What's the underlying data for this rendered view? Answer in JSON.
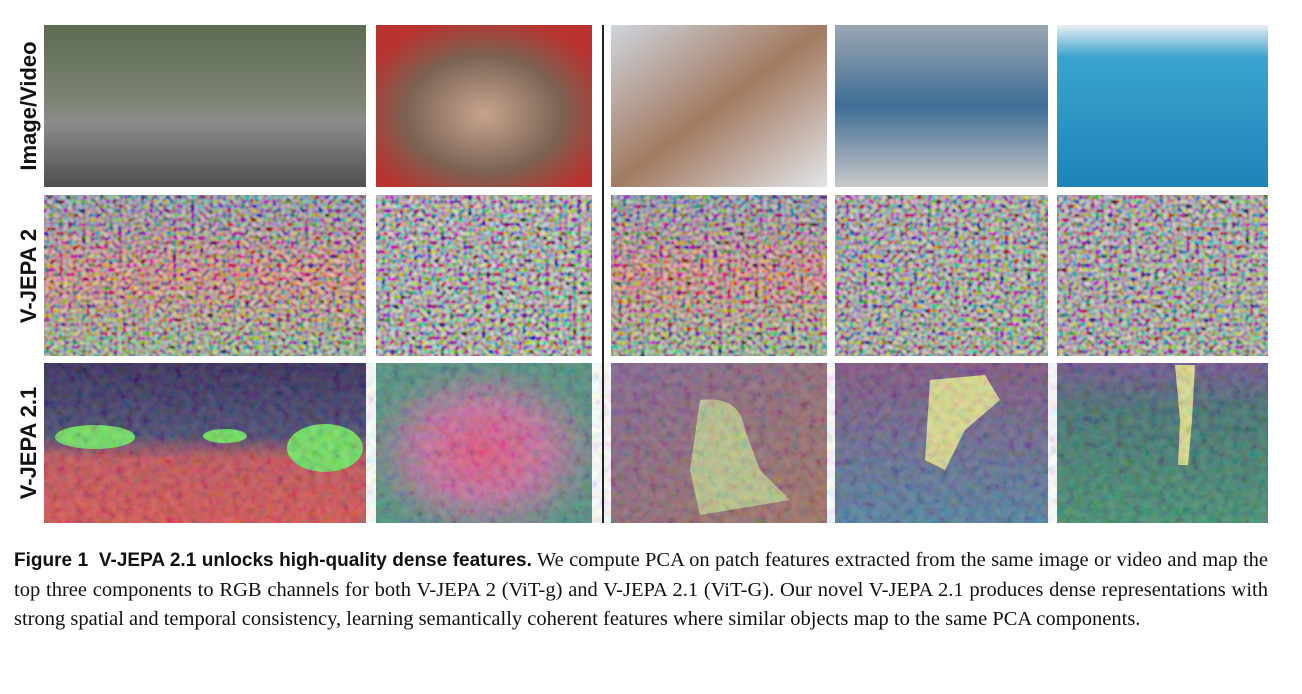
{
  "row_labels": [
    "Image/Video",
    "V-JEPA 2",
    "V-JEPA 2.1"
  ],
  "caption": {
    "label": "Figure 1",
    "title": "V-JEPA 2.1 unlocks high-quality dense features.",
    "text": "We compute PCA on patch features extracted from the same image or video and map the top three components to RGB channels for both V-JEPA 2 (ViT-g) and V-JEPA 2.1 (ViT-G). Our novel V-JEPA 2.1 produces dense representations with strong spatial and temporal consistency, learning semantically coherent features where similar objects map to the same PCA components."
  }
}
